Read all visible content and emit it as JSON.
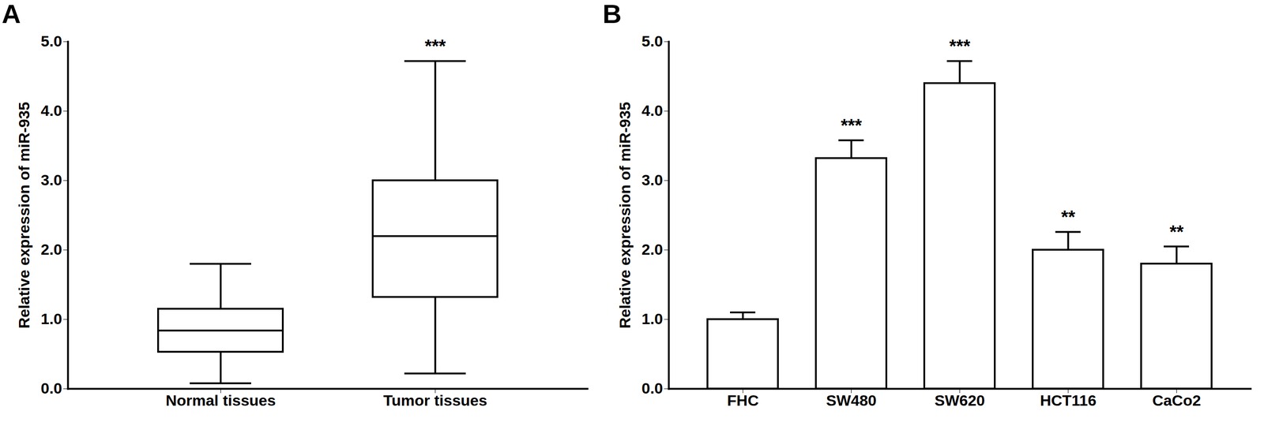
{
  "chart_data": [
    {
      "type": "box",
      "title": "A",
      "y_label": "Relative expression of miR-935",
      "categories": [
        "Normal tissues",
        "Tumor tissues"
      ],
      "min": [
        0.08,
        0.22
      ],
      "q1": [
        0.53,
        1.32
      ],
      "median": [
        0.84,
        2.2
      ],
      "q3": [
        1.15,
        3.0
      ],
      "max": [
        1.8,
        4.72
      ],
      "annotations": [
        null,
        "***"
      ],
      "color": "#ffffff",
      "ylim": [
        0,
        5
      ],
      "yticks": [
        0,
        1,
        2,
        3,
        4,
        5
      ],
      "grid": false
    },
    {
      "type": "bar",
      "title": "B",
      "y_label": "Relative expression of miR-935",
      "categories": [
        "FHC",
        "SW480",
        "SW620",
        "HCT116",
        "CaCo2"
      ],
      "values": [
        1.0,
        3.32,
        4.4,
        2.0,
        1.8
      ],
      "error": [
        0.1,
        0.26,
        0.32,
        0.26,
        0.25
      ],
      "annotations": [
        null,
        "***",
        "***",
        "**",
        "**"
      ],
      "color": "#ffffff",
      "ylim": [
        0,
        5
      ],
      "yticks": [
        0,
        1,
        2,
        3,
        4,
        5
      ],
      "grid": false
    }
  ]
}
